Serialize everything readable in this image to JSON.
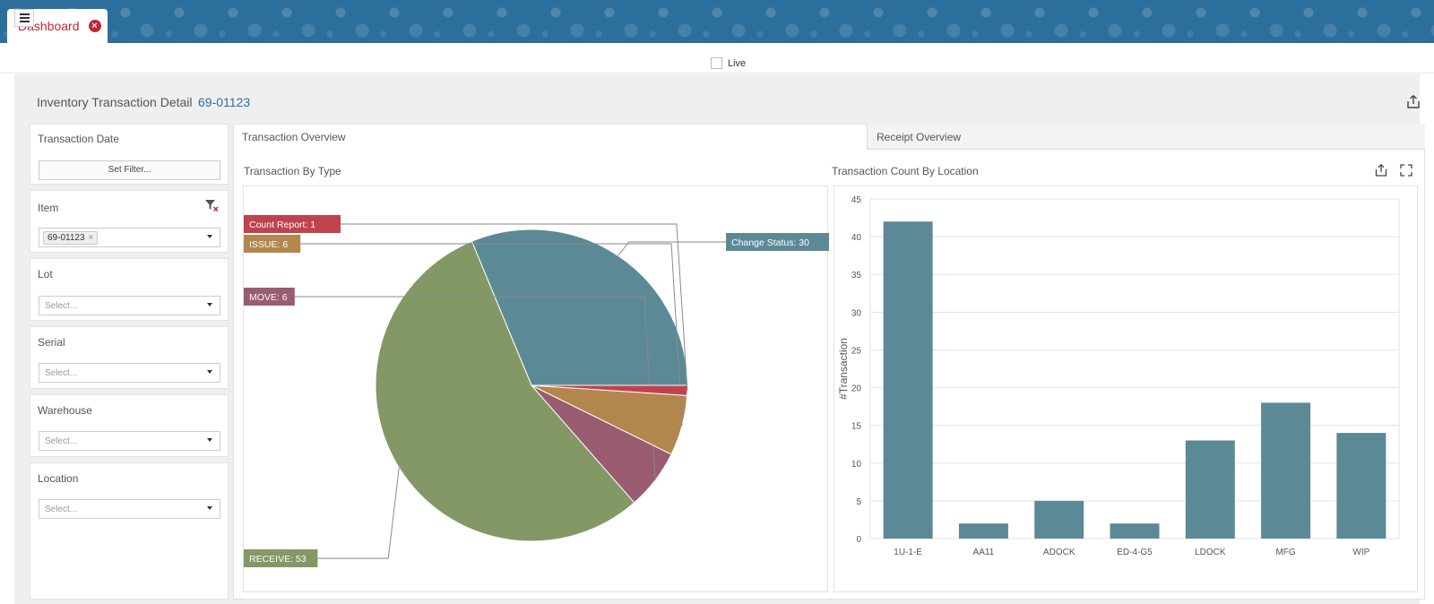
{
  "tab": {
    "label": "Dashboard"
  },
  "toolbar": {
    "live_label": "Live"
  },
  "page": {
    "title": "Inventory Transaction Detail",
    "item": "69-01123"
  },
  "filters": {
    "transaction_date": {
      "label": "Transaction Date",
      "button": "Set Filter..."
    },
    "item": {
      "label": "Item",
      "chip": "69-01123"
    },
    "lot": {
      "label": "Lot",
      "placeholder": "Select..."
    },
    "serial": {
      "label": "Serial",
      "placeholder": "Select..."
    },
    "warehouse": {
      "label": "Warehouse",
      "placeholder": "Select..."
    },
    "location": {
      "label": "Location",
      "placeholder": "Select..."
    }
  },
  "tabs": {
    "overview": "Transaction Overview",
    "receipt": "Receipt Overview"
  },
  "colors": {
    "accent": "#2d6f9c",
    "danger": "#c0283a"
  },
  "chart_data": [
    {
      "type": "pie",
      "title": "Transaction By Type",
      "slices": [
        {
          "label": "Change Status",
          "value": 30,
          "text": "Change Status: 30",
          "color": "#5b8a96"
        },
        {
          "label": "RECEIVE",
          "value": 53,
          "text": "RECEIVE: 53",
          "color": "#849866"
        },
        {
          "label": "MOVE",
          "value": 6,
          "text": "MOVE: 6",
          "color": "#9a5c70"
        },
        {
          "label": "ISSUE",
          "value": 6,
          "text": "ISSUE: 6",
          "color": "#b3864e"
        },
        {
          "label": "Count Report",
          "value": 1,
          "text": "Count Report: 1",
          "color": "#c1424f"
        }
      ]
    },
    {
      "type": "bar",
      "title": "Transaction Count By Location",
      "categories": [
        "1U-1-E",
        "AA11",
        "ADOCK",
        "ED-4-G5",
        "LDOCK",
        "MFG",
        "WIP"
      ],
      "values": [
        42,
        2,
        5,
        2,
        13,
        18,
        14
      ],
      "ylabel": "#Transaction",
      "ylim": [
        0,
        45
      ],
      "yticks": [
        0,
        5,
        10,
        15,
        20,
        25,
        30,
        35,
        40,
        45
      ],
      "color": "#5b8a96",
      "grid": true
    }
  ]
}
